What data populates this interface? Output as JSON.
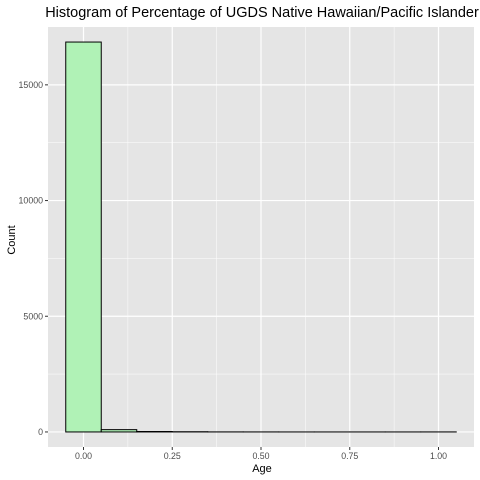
{
  "chart_data": {
    "type": "bar",
    "title": "Histogram of Percentage of UGDS Native Hawaiian/Pacific Islander",
    "xlabel": "Age",
    "ylabel": "Count",
    "xlim": [
      -0.1,
      1.1
    ],
    "ylim": [
      -650,
      17500
    ],
    "x_ticks": [
      0.0,
      0.25,
      0.5,
      0.75,
      1.0
    ],
    "x_tick_labels": [
      "0.00",
      "0.25",
      "0.50",
      "0.75",
      "1.00"
    ],
    "y_ticks": [
      0,
      5000,
      10000,
      15000
    ],
    "y_tick_labels": [
      "0",
      "5000",
      "10000",
      "15000"
    ],
    "bin_width": 0.1,
    "bins": [
      {
        "start": -0.05,
        "end": 0.05,
        "count": 16850
      },
      {
        "start": 0.05,
        "end": 0.15,
        "count": 100
      },
      {
        "start": 0.15,
        "end": 0.25,
        "count": 20
      },
      {
        "start": 0.25,
        "end": 0.35,
        "count": 10
      },
      {
        "start": 0.35,
        "end": 0.45,
        "count": 3
      },
      {
        "start": 0.45,
        "end": 0.55,
        "count": 2
      },
      {
        "start": 0.55,
        "end": 0.65,
        "count": 1
      },
      {
        "start": 0.65,
        "end": 0.75,
        "count": 1
      },
      {
        "start": 0.75,
        "end": 0.85,
        "count": 1
      },
      {
        "start": 0.85,
        "end": 0.95,
        "count": 1
      },
      {
        "start": 0.95,
        "end": 1.05,
        "count": 2
      }
    ],
    "fill_color": "#b0f2b6",
    "stroke_color": "#000000",
    "panel_background": "#e5e5e5",
    "grid": true,
    "grid_color": "#ffffff",
    "legend": "none"
  }
}
